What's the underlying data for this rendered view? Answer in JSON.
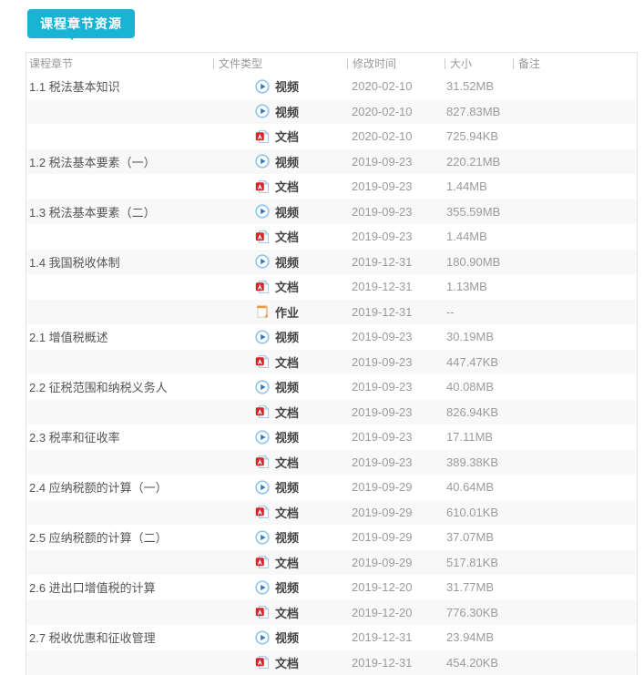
{
  "tab": {
    "label": "课程章节资源",
    "background": "#19b4d4",
    "text_color": "#ffffff"
  },
  "colors": {
    "accent_teal": "#19b4d4",
    "row_stripe": "#f8f8f8",
    "table_border": "#e6e6e6",
    "header_text": "#999999",
    "muted_text": "#9b9b9b",
    "video_icon_blue": "#3378c0",
    "video_icon_ring": "#8fc7ea",
    "pdf_icon_red": "#d6252b",
    "homework_icon_orange": "#e8973f"
  },
  "table": {
    "columns": [
      "课程章节",
      "文件类型",
      "修改时间",
      "大小",
      "备注"
    ],
    "rows": [
      {
        "section": "1.1 税法基本知识",
        "type": "视频",
        "icon": "video-play-icon",
        "date": "2020-02-10",
        "size": "31.52MB",
        "note": ""
      },
      {
        "section": "",
        "type": "视频",
        "icon": "video-play-icon",
        "date": "2020-02-10",
        "size": "827.83MB",
        "note": ""
      },
      {
        "section": "",
        "type": "文档",
        "icon": "pdf-document-icon",
        "date": "2020-02-10",
        "size": "725.94KB",
        "note": ""
      },
      {
        "section": "1.2 税法基本要素（一）",
        "type": "视频",
        "icon": "video-play-icon",
        "date": "2019-09-23",
        "size": "220.21MB",
        "note": ""
      },
      {
        "section": "",
        "type": "文档",
        "icon": "pdf-document-icon",
        "date": "2019-09-23",
        "size": "1.44MB",
        "note": ""
      },
      {
        "section": "1.3 税法基本要素（二）",
        "type": "视频",
        "icon": "video-play-icon",
        "date": "2019-09-23",
        "size": "355.59MB",
        "note": ""
      },
      {
        "section": "",
        "type": "文档",
        "icon": "pdf-document-icon",
        "date": "2019-09-23",
        "size": "1.44MB",
        "note": ""
      },
      {
        "section": "1.4 我国税收体制",
        "type": "视频",
        "icon": "video-play-icon",
        "date": "2019-12-31",
        "size": "180.90MB",
        "note": ""
      },
      {
        "section": "",
        "type": "文档",
        "icon": "pdf-document-icon",
        "date": "2019-12-31",
        "size": "1.13MB",
        "note": ""
      },
      {
        "section": "",
        "type": "作业",
        "icon": "homework-icon",
        "date": "2019-12-31",
        "size": "--",
        "note": ""
      },
      {
        "section": "2.1 增值税概述",
        "type": "视频",
        "icon": "video-play-icon",
        "date": "2019-09-23",
        "size": "30.19MB",
        "note": ""
      },
      {
        "section": "",
        "type": "文档",
        "icon": "pdf-document-icon",
        "date": "2019-09-23",
        "size": "447.47KB",
        "note": ""
      },
      {
        "section": "2.2 征税范围和纳税义务人",
        "type": "视频",
        "icon": "video-play-icon",
        "date": "2019-09-23",
        "size": "40.08MB",
        "note": ""
      },
      {
        "section": "",
        "type": "文档",
        "icon": "pdf-document-icon",
        "date": "2019-09-23",
        "size": "826.94KB",
        "note": ""
      },
      {
        "section": "2.3 税率和征收率",
        "type": "视频",
        "icon": "video-play-icon",
        "date": "2019-09-23",
        "size": "17.11MB",
        "note": ""
      },
      {
        "section": "",
        "type": "文档",
        "icon": "pdf-document-icon",
        "date": "2019-09-23",
        "size": "389.38KB",
        "note": ""
      },
      {
        "section": "2.4 应纳税额的计算（一）",
        "type": "视频",
        "icon": "video-play-icon",
        "date": "2019-09-29",
        "size": "40.64MB",
        "note": ""
      },
      {
        "section": "",
        "type": "文档",
        "icon": "pdf-document-icon",
        "date": "2019-09-29",
        "size": "610.01KB",
        "note": ""
      },
      {
        "section": "2.5 应纳税额的计算（二）",
        "type": "视频",
        "icon": "video-play-icon",
        "date": "2019-09-29",
        "size": "37.07MB",
        "note": ""
      },
      {
        "section": "",
        "type": "文档",
        "icon": "pdf-document-icon",
        "date": "2019-09-29",
        "size": "517.81KB",
        "note": ""
      },
      {
        "section": "2.6 进出口增值税的计算",
        "type": "视频",
        "icon": "video-play-icon",
        "date": "2019-12-20",
        "size": "31.77MB",
        "note": ""
      },
      {
        "section": "",
        "type": "文档",
        "icon": "pdf-document-icon",
        "date": "2019-12-20",
        "size": "776.30KB",
        "note": ""
      },
      {
        "section": "2.7 税收优惠和征收管理",
        "type": "视频",
        "icon": "video-play-icon",
        "date": "2019-12-31",
        "size": "23.94MB",
        "note": ""
      },
      {
        "section": "",
        "type": "文档",
        "icon": "pdf-document-icon",
        "date": "2019-12-31",
        "size": "454.20KB",
        "note": ""
      }
    ]
  }
}
